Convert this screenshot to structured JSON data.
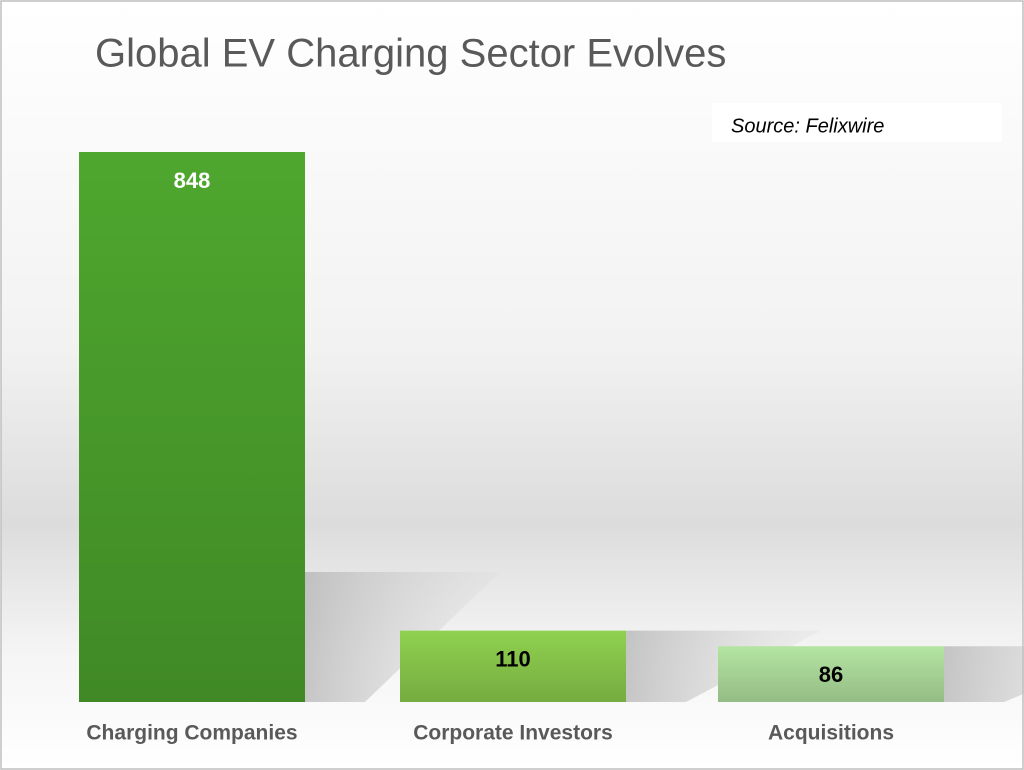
{
  "chart_data": {
    "type": "bar",
    "title": "Global EV Charging Sector Evolves",
    "source": "Source: Felixwire",
    "categories": [
      "Charging Companies",
      "Corporate Investors",
      "Acquisitions"
    ],
    "values": [
      848,
      110,
      86
    ],
    "colors": [
      "#4ea72e",
      "#8fd14f",
      "#b4e5a2"
    ],
    "value_label_colors": [
      "#ffffff",
      "#000000",
      "#000000"
    ]
  }
}
